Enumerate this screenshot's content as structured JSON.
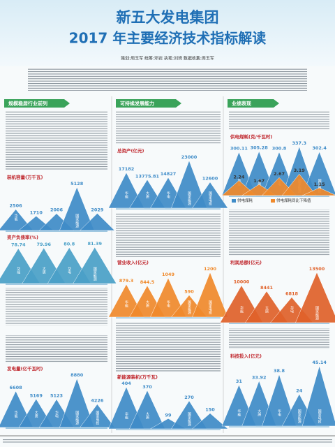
{
  "header": {
    "title": "新五大发电集团",
    "subtitle": "2017 年主要经济技术指标解读",
    "byline": "策划:周玉军  统筹:邓岩  执笔:刘琦  数据收集:周玉军"
  },
  "sections": [
    "规模稳居行业前列",
    "可持续发展能力",
    "业绩表现"
  ],
  "chart_data": [
    {
      "type": "bar",
      "title": "装机容量(万千瓦)",
      "categories": [
        "华能",
        "大唐",
        "华电",
        "国家能源",
        "国家电投"
      ],
      "values": [
        2506,
        1710,
        2006,
        5128,
        2029
      ],
      "color": "#3f8cc8"
    },
    {
      "type": "bar",
      "title": "资产负债率(%)",
      "categories": [
        "华能",
        "大唐",
        "华电",
        "国家能源"
      ],
      "values": [
        78.74,
        79.96,
        80.8,
        81.39
      ],
      "color": "#4aa0c8"
    },
    {
      "type": "bar",
      "title": "发电量(亿千瓦时)",
      "categories": [
        "华能",
        "大唐",
        "华电",
        "国家能源",
        "国家电投"
      ],
      "values": [
        6608,
        5169,
        5123,
        8880,
        4226
      ],
      "color": "#3f8cc8"
    },
    {
      "type": "bar",
      "title": "总资产(亿元)",
      "categories": [
        "华能",
        "大唐",
        "华电",
        "国家能源",
        "国家电投"
      ],
      "values": [
        17182,
        13775.81,
        14827,
        23000,
        12600
      ],
      "color": "#3f8cc8"
    },
    {
      "type": "bar",
      "title": "营业收入(亿元)",
      "categories": [
        "华能",
        "大唐",
        "华电",
        "国家能源",
        "国家电投"
      ],
      "values": [
        879.3,
        844.5,
        1049,
        590,
        1200
      ],
      "color": "#f08a2c"
    },
    {
      "type": "bar",
      "title": "新能源装机(万千瓦)",
      "categories": [
        "华能",
        "大唐",
        "华电",
        "国家能源",
        "国家电投"
      ],
      "values": [
        404,
        370,
        99,
        270,
        150
      ],
      "color": "#3f8cc8"
    },
    {
      "type": "bar",
      "title": "供电煤耗(克/千瓦时)",
      "categories": [
        "华能",
        "大唐",
        "华电",
        "国家能源",
        "国家电投"
      ],
      "series": [
        {
          "name": "供电煤耗",
          "color": "#3f8cc8",
          "values": [
            300.11,
            305.28,
            300.8,
            337.3,
            302.4
          ]
        },
        {
          "name": "供电煤耗同比下降值",
          "color": "#f08a2c",
          "axis": "y2",
          "values": [
            2.24,
            1.67,
            2.67,
            3.19,
            1.15
          ]
        }
      ]
    },
    {
      "type": "bar",
      "title": "利润总额(亿元)",
      "categories": [
        "华能",
        "大唐",
        "华电",
        "国家能源"
      ],
      "values": [
        10000,
        8441,
        6818,
        13500
      ],
      "color": "#e0622a"
    },
    {
      "type": "bar",
      "title": "科技投入(亿元)",
      "categories": [
        "华能",
        "大唐",
        "华电",
        "国家能源",
        "国家电投"
      ],
      "values": [
        31,
        33.92,
        38.8,
        24,
        45.14
      ],
      "color": "#3f8cc8"
    }
  ]
}
